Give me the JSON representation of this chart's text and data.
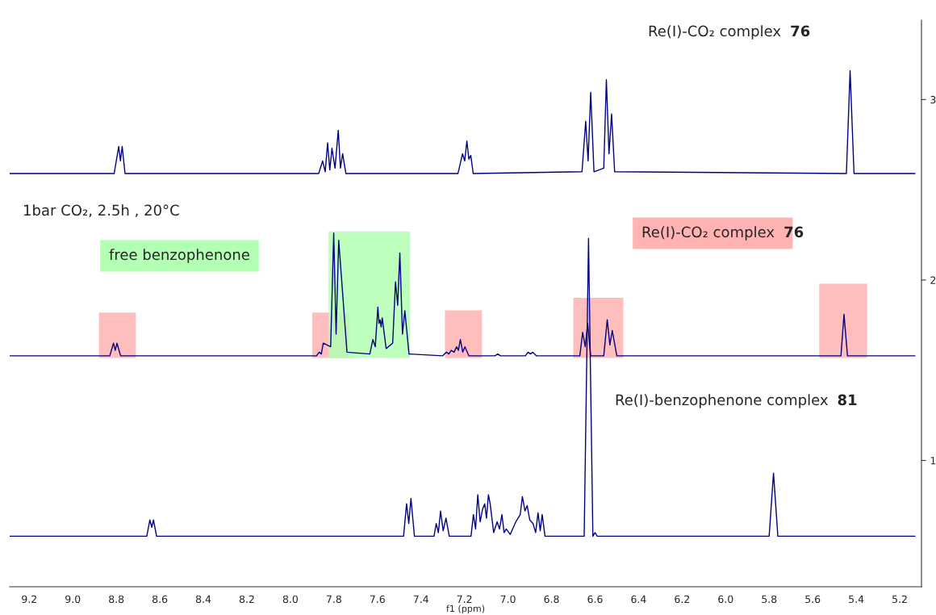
{
  "chart_data": {
    "type": "line",
    "xlabel": "f1 (ppm)",
    "xlim": [
      9.29,
      5.1
    ],
    "ylim": [
      0.3,
      3.44
    ],
    "xticks": [
      9.2,
      {
        "value": 9,
        "label": "9.0"
      },
      8.8,
      8.6,
      8.4,
      8.2,
      {
        "value": 8,
        "label": "8.0"
      },
      7.8,
      7.6,
      7.4,
      7.2,
      {
        "value": 7,
        "label": "7.0"
      },
      6.8,
      6.6,
      6.4,
      6.2,
      {
        "value": 6,
        "label": "6.0"
      },
      5.8,
      5.6,
      5.4,
      5.2
    ],
    "yticks": [
      1,
      2,
      3
    ],
    "grid": false,
    "marker": "none",
    "line_style": "solid",
    "series": [
      {
        "color": "#000080",
        "x": [
          9.29,
          8.81,
          8.789,
          8.781,
          8.773,
          8.76,
          7.87,
          7.852,
          7.84,
          7.829,
          7.819,
          7.809,
          7.795,
          7.78,
          7.77,
          7.76,
          7.745,
          7.23,
          7.209,
          7.199,
          7.189,
          7.18,
          7.171,
          7.16,
          6.66,
          6.643,
          6.632,
          6.62,
          6.605,
          6.56,
          6.548,
          6.536,
          6.524,
          6.51,
          5.445,
          5.428,
          5.41,
          5.13
        ],
        "values": [
          2.59,
          2.59,
          2.74,
          2.66,
          2.74,
          2.59,
          2.59,
          2.66,
          2.6,
          2.76,
          2.61,
          2.73,
          2.62,
          2.83,
          2.62,
          2.7,
          2.59,
          2.59,
          2.7,
          2.66,
          2.77,
          2.67,
          2.69,
          2.59,
          2.6,
          2.88,
          2.66,
          3.04,
          2.6,
          2.62,
          3.11,
          2.7,
          2.92,
          2.6,
          2.59,
          3.16,
          2.59,
          2.59
        ]
      },
      {
        "color": "#000080",
        "x": [
          9.29,
          8.83,
          8.813,
          8.805,
          8.797,
          8.78,
          7.88,
          7.868,
          7.858,
          7.849,
          7.815,
          7.801,
          7.79,
          7.778,
          7.74,
          7.635,
          7.621,
          7.61,
          7.598,
          7.593,
          7.588,
          7.583,
          7.578,
          7.56,
          7.53,
          7.517,
          7.507,
          7.497,
          7.485,
          7.474,
          7.455,
          7.3,
          7.283,
          7.272,
          7.261,
          7.248,
          7.236,
          7.228,
          7.219,
          7.208,
          7.198,
          7.18,
          7.06,
          7.047,
          7.035,
          6.92,
          6.908,
          6.897,
          6.886,
          6.87,
          6.67,
          6.657,
          6.645,
          6.634,
          6.62,
          6.56,
          6.544,
          6.532,
          6.521,
          6.5,
          5.47,
          5.456,
          5.44,
          5.13
        ],
        "values": [
          1.58,
          1.58,
          1.65,
          1.61,
          1.65,
          1.58,
          1.58,
          1.6,
          1.59,
          1.65,
          1.63,
          2.26,
          1.7,
          2.22,
          1.6,
          1.59,
          1.67,
          1.63,
          1.85,
          1.76,
          1.78,
          1.74,
          1.79,
          1.62,
          1.65,
          1.99,
          1.86,
          2.15,
          1.7,
          1.83,
          1.59,
          1.58,
          1.6,
          1.59,
          1.61,
          1.6,
          1.63,
          1.61,
          1.67,
          1.6,
          1.63,
          1.58,
          1.58,
          1.59,
          1.58,
          1.58,
          1.6,
          1.59,
          1.6,
          1.58,
          1.58,
          1.71,
          1.63,
          1.76,
          1.58,
          1.58,
          1.78,
          1.64,
          1.72,
          1.58,
          1.58,
          1.81,
          1.58,
          1.58
        ]
      },
      {
        "color": "#000080",
        "x": [
          9.29,
          8.66,
          8.646,
          8.637,
          8.629,
          8.615,
          7.48,
          7.466,
          7.456,
          7.446,
          7.43,
          7.34,
          7.33,
          7.32,
          7.31,
          7.298,
          7.285,
          7.27,
          7.17,
          7.159,
          7.149,
          7.139,
          7.128,
          7.117,
          7.107,
          7.099,
          7.09,
          7.082,
          7.066,
          7.05,
          7.039,
          7.028,
          7.018,
          7.008,
          6.99,
          6.964,
          6.954,
          6.944,
          6.934,
          6.922,
          6.912,
          6.9,
          6.885,
          6.873,
          6.862,
          6.852,
          6.843,
          6.83,
          6.65,
          6.63,
          6.61,
          6.6,
          6.59,
          5.8,
          5.78,
          5.76,
          5.13
        ],
        "values": [
          0.58,
          0.58,
          0.67,
          0.63,
          0.67,
          0.58,
          0.58,
          0.76,
          0.65,
          0.79,
          0.58,
          0.58,
          0.65,
          0.6,
          0.72,
          0.61,
          0.68,
          0.58,
          0.58,
          0.7,
          0.62,
          0.81,
          0.66,
          0.73,
          0.76,
          0.68,
          0.81,
          0.76,
          0.6,
          0.66,
          0.62,
          0.7,
          0.6,
          0.62,
          0.59,
          0.66,
          0.68,
          0.7,
          0.8,
          0.72,
          0.75,
          0.67,
          0.65,
          0.6,
          0.71,
          0.61,
          0.7,
          0.58,
          0.58,
          2.23,
          0.58,
          0.6,
          0.58,
          0.58,
          0.93,
          0.58,
          0.58
        ]
      }
    ],
    "bands": [
      {
        "axis": "x",
        "from": 8.88,
        "to": 8.71,
        "color": "#ffb3b3"
      },
      {
        "axis": "x",
        "from": 7.9,
        "to": 7.73,
        "color": "#ffb3b3"
      },
      {
        "axis": "x",
        "from": 7.825,
        "to": 7.45,
        "color": "#b3ffb3"
      },
      {
        "axis": "x",
        "from": 7.29,
        "to": 7.12,
        "color": "#ffb3b3"
      },
      {
        "axis": "x",
        "from": 6.7,
        "to": 6.47,
        "color": "#ffb3b3"
      },
      {
        "axis": "x",
        "from": 5.57,
        "to": 5.35,
        "color": "#ffb3b3"
      }
    ],
    "annotations": [
      "Re(I)-CO₂ complex 76",
      "1bar CO₂, 2.5h , 20°C",
      "free benzophenone",
      "Re(I)-CO₂ complex 76",
      "Re(I)-benzophenone complex 81"
    ]
  }
}
